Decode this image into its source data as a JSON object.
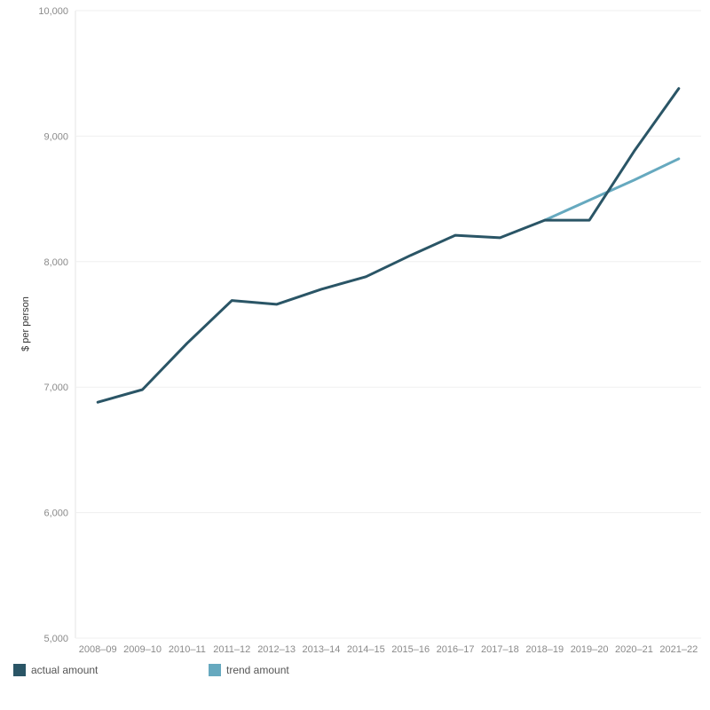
{
  "chart_data": {
    "type": "line",
    "title": "",
    "xlabel": "",
    "ylabel": "$ per person",
    "ylim": [
      5000,
      10000
    ],
    "yticks": [
      5000,
      6000,
      7000,
      8000,
      9000,
      10000
    ],
    "ytick_labels": [
      "5,000",
      "6,000",
      "7,000",
      "8,000",
      "9,000",
      "10,000"
    ],
    "grid": true,
    "legend_position": "bottom-left",
    "categories": [
      "2008–09",
      "2009–10",
      "2010–11",
      "2011–12",
      "2012–13",
      "2013–14",
      "2014–15",
      "2015–16",
      "2016–17",
      "2017–18",
      "2018–19",
      "2019–20",
      "2020–21",
      "2021–22"
    ],
    "series": [
      {
        "name": "actual amount",
        "color": "#2a5566",
        "values": [
          6880,
          6980,
          7350,
          7690,
          7660,
          7780,
          7880,
          8050,
          8210,
          8190,
          8330,
          8330,
          8880,
          9380
        ]
      },
      {
        "name": "trend amount",
        "color": "#66a9bf",
        "values": [
          null,
          null,
          null,
          null,
          null,
          null,
          null,
          null,
          null,
          null,
          8330,
          8490,
          8650,
          8820
        ]
      }
    ]
  }
}
